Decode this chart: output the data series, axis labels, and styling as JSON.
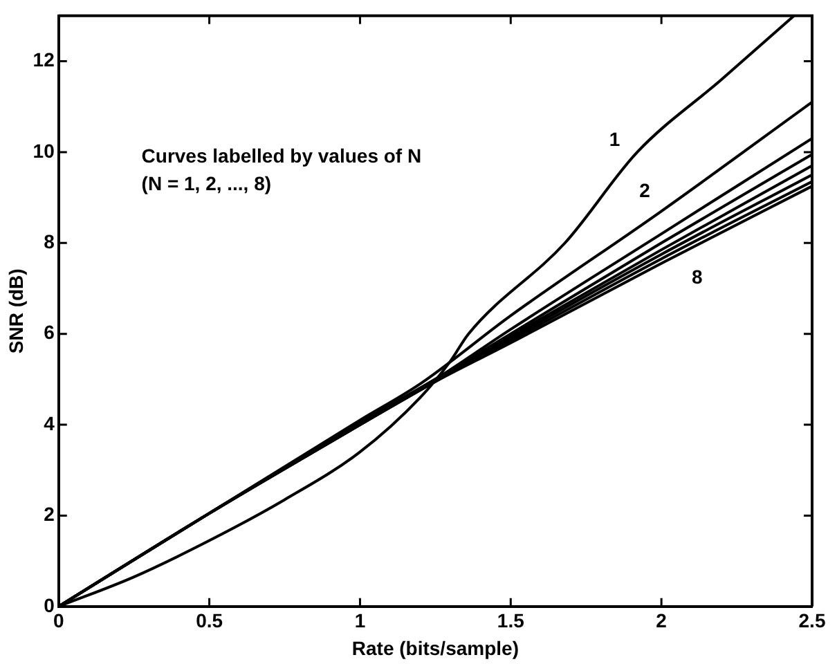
{
  "chart_data": {
    "type": "line",
    "xlabel": "Rate (bits/sample)",
    "ylabel": "SNR (dB)",
    "xlim": [
      0,
      2.5
    ],
    "xticks": [
      0,
      0.5,
      1,
      1.5,
      2,
      2.5
    ],
    "ylim": [
      0,
      13
    ],
    "yticks": [
      0,
      2,
      4,
      6,
      8,
      10,
      12
    ],
    "grid": false,
    "legend": false,
    "marker": "none",
    "line_style": "solid",
    "annotations": [
      "Curves labelled by values of N",
      "(N = 1, 2, ..., 8)"
    ],
    "series": [
      {
        "name": "1",
        "color": "#000000",
        "x": [
          0,
          0.25,
          0.5,
          0.75,
          1,
          1.2,
          1.3,
          1.36,
          1.68,
          1.92,
          2.2,
          2.44
        ],
        "values": [
          0,
          0.65,
          1.45,
          2.35,
          3.4,
          4.6,
          5.4,
          6.0,
          8.0,
          10.0,
          11.6,
          13.0
        ]
      },
      {
        "name": "2",
        "color": "#000000",
        "x": [
          0,
          0.5,
          1,
          1.2,
          1.5,
          2,
          2.5
        ],
        "values": [
          0,
          2.05,
          4.1,
          4.9,
          6.4,
          8.7,
          11.1
        ]
      },
      {
        "color": "#000000",
        "x": [
          0,
          0.5,
          1,
          1.25,
          1.5,
          2,
          2.5
        ],
        "values": [
          0,
          2.05,
          4.05,
          5.0,
          6.1,
          8.2,
          10.3
        ]
      },
      {
        "color": "#000000",
        "x": [
          0,
          0.5,
          1,
          1.25,
          1.5,
          2,
          2.5
        ],
        "values": [
          0,
          2.05,
          4.05,
          5.0,
          6.0,
          8.0,
          9.95
        ]
      },
      {
        "color": "#000000",
        "x": [
          0,
          0.5,
          1,
          1.25,
          1.5,
          2,
          2.5
        ],
        "values": [
          0,
          2.05,
          4.0,
          5.0,
          5.95,
          7.85,
          9.7
        ]
      },
      {
        "color": "#000000",
        "x": [
          0,
          0.5,
          1,
          1.25,
          1.5,
          2,
          2.5
        ],
        "values": [
          0,
          2.05,
          4.0,
          4.95,
          5.9,
          7.75,
          9.5
        ]
      },
      {
        "color": "#000000",
        "x": [
          0,
          0.5,
          1,
          1.25,
          1.5,
          2,
          2.5
        ],
        "values": [
          0,
          2.05,
          4.0,
          4.95,
          5.85,
          7.65,
          9.35
        ]
      },
      {
        "name": "8",
        "color": "#000000",
        "x": [
          0,
          0.5,
          1,
          1.25,
          1.5,
          2,
          2.5
        ],
        "values": [
          0,
          2.05,
          4.0,
          4.95,
          5.8,
          7.55,
          9.25
        ]
      }
    ]
  }
}
